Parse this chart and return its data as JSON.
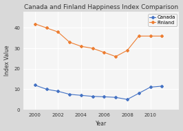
{
  "title": "Canada and Finland Happiness Index Comparison",
  "xlabel": "Year",
  "ylabel": "Index Value",
  "canada": {
    "x": [
      2000,
      2001,
      2002,
      2003,
      2004,
      2005,
      2006,
      2007,
      2008,
      2009,
      2010,
      2011
    ],
    "y": [
      12,
      10,
      9,
      7.5,
      7,
      6.5,
      6.3,
      6,
      5,
      8,
      11,
      11.5
    ],
    "color": "#4472c4",
    "marker": "D",
    "label": "Canada"
  },
  "finland": {
    "x": [
      2000,
      2001,
      2002,
      2003,
      2004,
      2005,
      2006,
      2007,
      2008,
      2009,
      2010,
      2011
    ],
    "y": [
      42,
      40,
      38,
      33,
      31,
      30,
      28,
      26,
      29,
      36,
      36,
      36
    ],
    "color": "#ed7d31",
    "marker": "D",
    "label": "Finland"
  },
  "xlim": [
    1999,
    2012.5
  ],
  "ylim": [
    0,
    48
  ],
  "yticks": [
    0,
    10,
    20,
    30,
    40
  ],
  "xticks": [
    2000,
    2002,
    2004,
    2006,
    2008,
    2010
  ],
  "background_color": "#d9d9d9",
  "plot_background_color": "#f5f5f5",
  "grid_color": "#ffffff",
  "title_fontsize": 6.5,
  "axis_label_fontsize": 5.5,
  "tick_fontsize": 5,
  "legend_fontsize": 5
}
